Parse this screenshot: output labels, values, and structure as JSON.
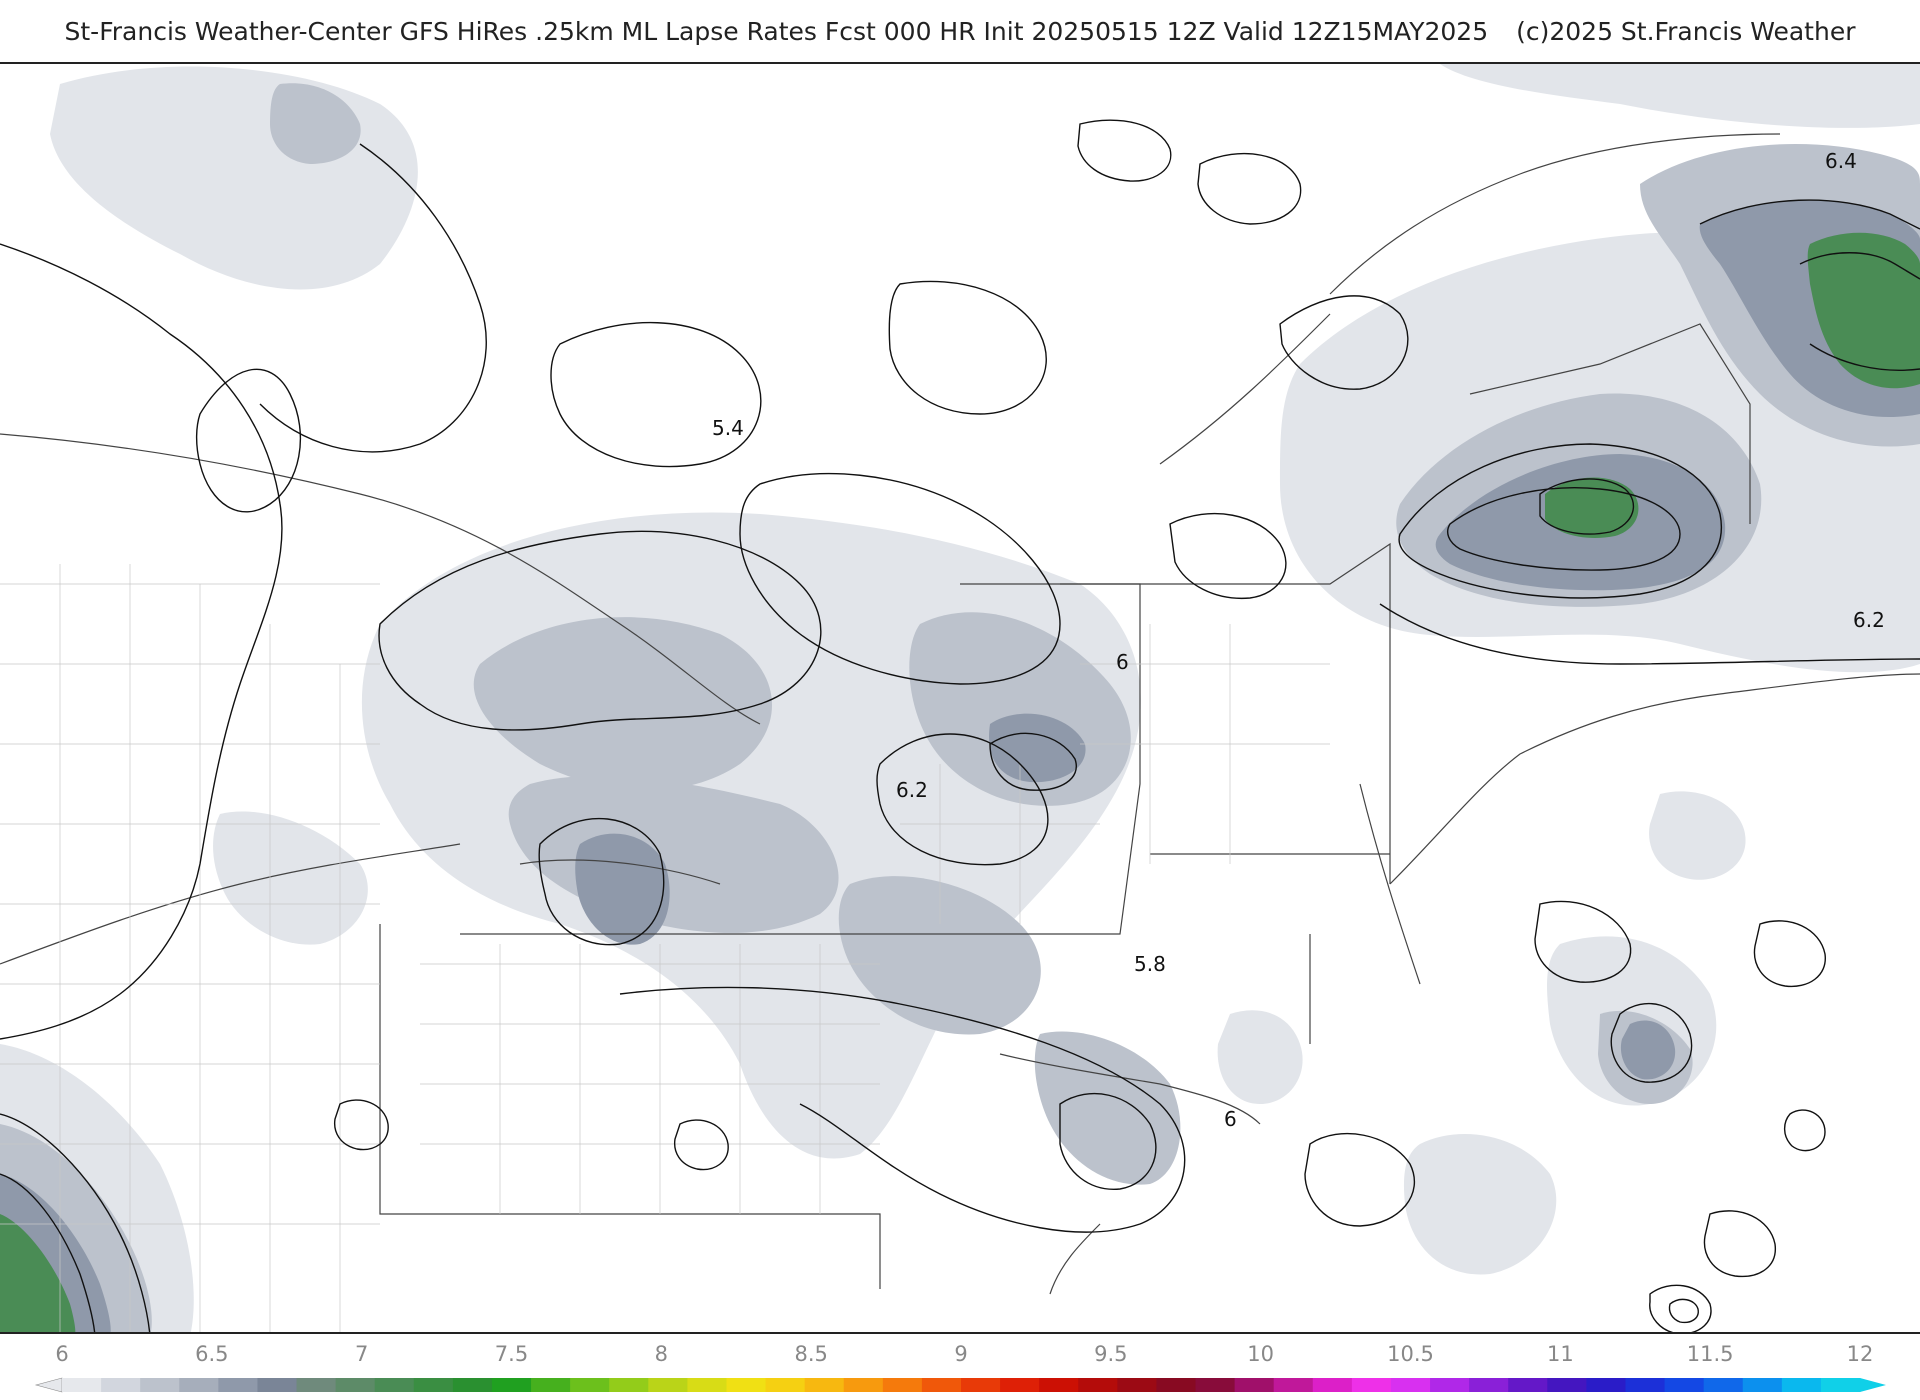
{
  "header": {
    "title": "St-Francis Weather-Center GFS HiRes .25km ML Lapse Rates  Fcst 000 HR Init 20250515 12Z  Valid 12Z15MAY2025",
    "copyright": "(c)2025 St.Francis Weather"
  },
  "map": {
    "contour_labels": [
      "5.4",
      "6.4",
      "6.2",
      "6",
      "6.2",
      "5.8",
      "6"
    ]
  },
  "colorbar": {
    "tick_labels": [
      "6",
      "6.5",
      "7",
      "7.5",
      "8",
      "8.5",
      "9",
      "9.5",
      "10",
      "10.5",
      "11",
      "11.5",
      "12"
    ],
    "colors": [
      "#e6e8ec",
      "#d2d6de",
      "#bcc2cc",
      "#a6aebb",
      "#8f99aa",
      "#7a8597",
      "#6f8a7c",
      "#5d8b68",
      "#4a8c55",
      "#3a8e42",
      "#2a9030",
      "#20a020",
      "#46b01e",
      "#6cc01c",
      "#93cc1a",
      "#bad418",
      "#d8dc16",
      "#f0e014",
      "#f5d012",
      "#f7b810",
      "#f79a0e",
      "#f57a0c",
      "#f0580a",
      "#e83a08",
      "#de2006",
      "#cc1004",
      "#b40c0a",
      "#9c0a14",
      "#880a22",
      "#880c3a",
      "#a0106a",
      "#c0189a",
      "#dc20c8",
      "#ee30e8",
      "#d830f0",
      "#b028e8",
      "#8a20d8",
      "#6418c8",
      "#4416c0",
      "#2a1cc8",
      "#1c30d8",
      "#1448e4",
      "#1068ea",
      "#0c90ee",
      "#0ab8ee",
      "#10d0e8"
    ]
  }
}
